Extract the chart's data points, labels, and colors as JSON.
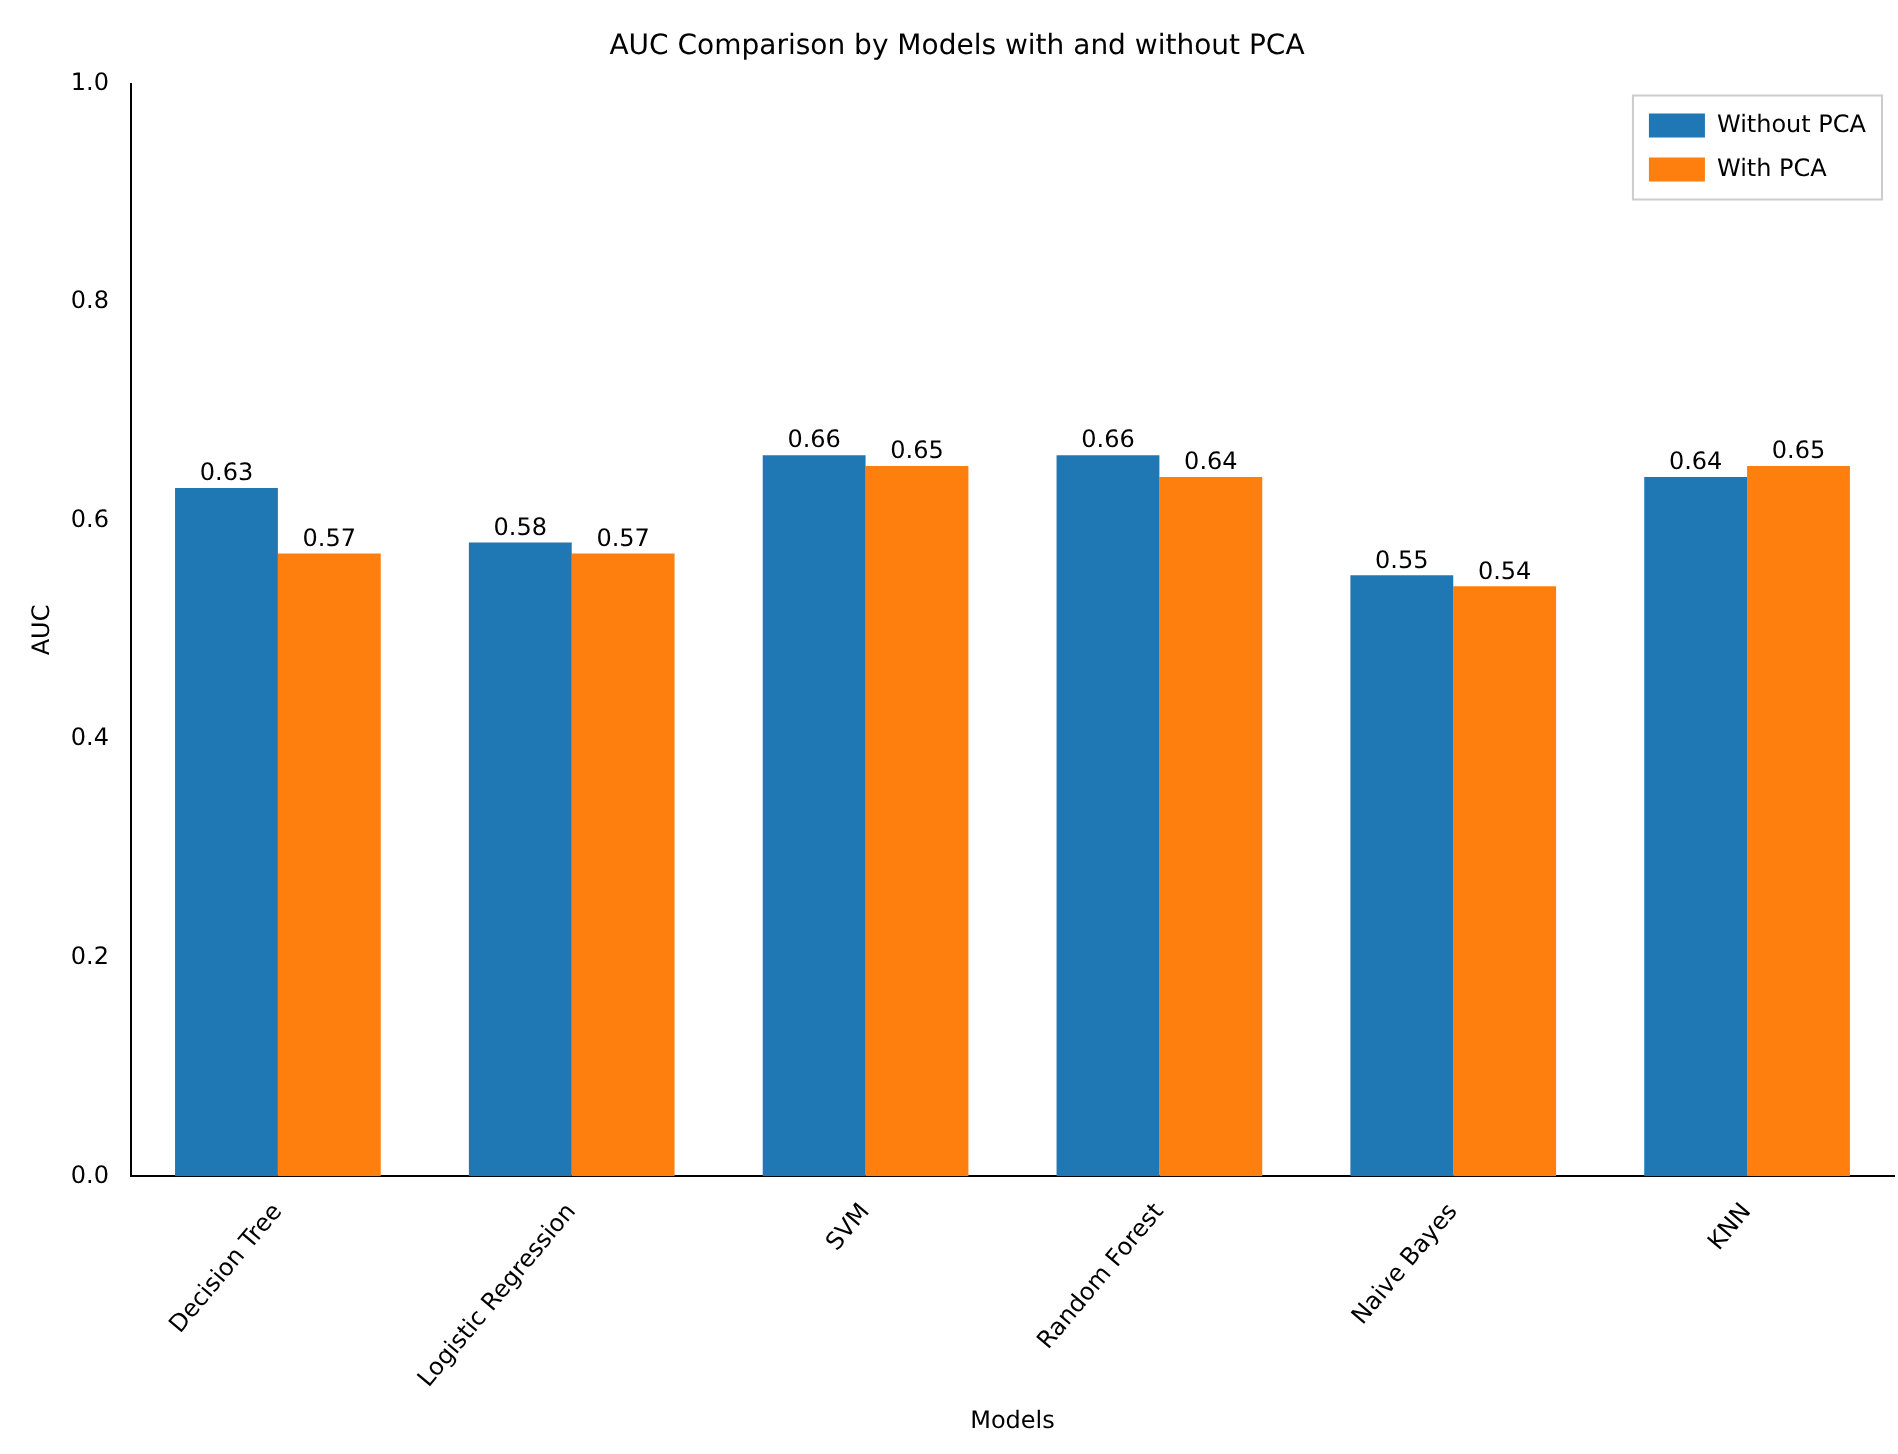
{
  "chart_data": {
    "type": "bar",
    "title": "AUC Comparison by Models with and without PCA",
    "xlabel": "Models",
    "ylabel": "AUC",
    "categories": [
      "Decision Tree",
      "Logistic Regression",
      "SVM",
      "Random Forest",
      "Naive Bayes",
      "KNN"
    ],
    "series": [
      {
        "name": "Without PCA",
        "color": "#1f77b4",
        "values": [
          0.63,
          0.58,
          0.66,
          0.66,
          0.55,
          0.64
        ]
      },
      {
        "name": "With PCA",
        "color": "#ff7f0e",
        "values": [
          0.57,
          0.57,
          0.65,
          0.64,
          0.54,
          0.65
        ]
      }
    ],
    "ylim": [
      0,
      1
    ],
    "yticks": [
      {
        "value": 0,
        "label": "0.0"
      },
      {
        "value": 0.2,
        "label": "0.2"
      },
      {
        "value": 0.4,
        "label": "0.4"
      },
      {
        "value": 0.6,
        "label": "0.6"
      },
      {
        "value": 0.8,
        "label": "0.8"
      },
      {
        "value": 1,
        "label": "1.0"
      }
    ],
    "data_labels": true,
    "legend": "top right",
    "grid": false
  }
}
